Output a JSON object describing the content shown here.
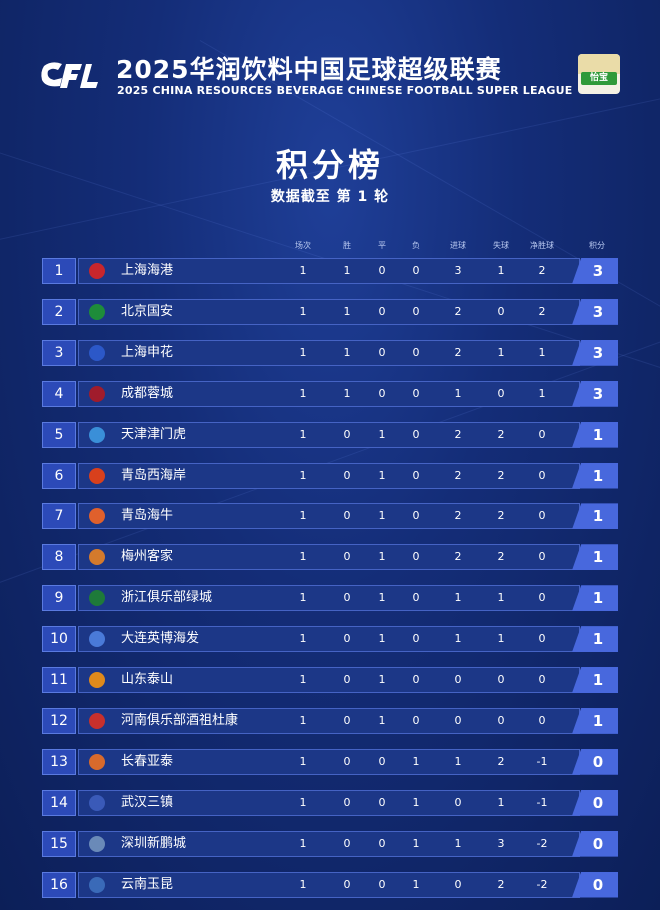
{
  "header": {
    "logo_text": "CFL",
    "title_cn": "2025华润饮料中国足球超级联赛",
    "title_en": "2025 CHINA RESOURCES BEVERAGE CHINESE FOOTBALL SUPER LEAGUE",
    "sponsor_text": "怡宝"
  },
  "main_title": "积分榜",
  "subtitle": "数据截至 第 1 轮",
  "columns": [
    "场次",
    "胜",
    "平",
    "负",
    "进球",
    "失球",
    "净胜球",
    "积分"
  ],
  "colors": {
    "background": "#142d78",
    "row_bar": "#1c3787",
    "rank_box": "#2c4ab8",
    "points_box": "#4868dd"
  },
  "standings": [
    {
      "rank": "1",
      "team": "上海海港",
      "played": "1",
      "won": "1",
      "drawn": "0",
      "lost": "0",
      "gf": "3",
      "ga": "1",
      "gd": "2",
      "pts": "3",
      "logo_color": "#c8262c"
    },
    {
      "rank": "2",
      "team": "北京国安",
      "played": "1",
      "won": "1",
      "drawn": "0",
      "lost": "0",
      "gf": "2",
      "ga": "0",
      "gd": "2",
      "pts": "3",
      "logo_color": "#1e8c3a"
    },
    {
      "rank": "3",
      "team": "上海申花",
      "played": "1",
      "won": "1",
      "drawn": "0",
      "lost": "0",
      "gf": "2",
      "ga": "1",
      "gd": "1",
      "pts": "3",
      "logo_color": "#2c58c8"
    },
    {
      "rank": "4",
      "team": "成都蓉城",
      "played": "1",
      "won": "1",
      "drawn": "0",
      "lost": "0",
      "gf": "1",
      "ga": "0",
      "gd": "1",
      "pts": "3",
      "logo_color": "#a01c2c"
    },
    {
      "rank": "5",
      "team": "天津津门虎",
      "played": "1",
      "won": "0",
      "drawn": "1",
      "lost": "0",
      "gf": "2",
      "ga": "2",
      "gd": "0",
      "pts": "1",
      "logo_color": "#3a8fd8"
    },
    {
      "rank": "6",
      "team": "青岛西海岸",
      "played": "1",
      "won": "0",
      "drawn": "1",
      "lost": "0",
      "gf": "2",
      "ga": "2",
      "gd": "0",
      "pts": "1",
      "logo_color": "#d8401c"
    },
    {
      "rank": "7",
      "team": "青岛海牛",
      "played": "1",
      "won": "0",
      "drawn": "1",
      "lost": "0",
      "gf": "2",
      "ga": "2",
      "gd": "0",
      "pts": "1",
      "logo_color": "#e0602c"
    },
    {
      "rank": "8",
      "team": "梅州客家",
      "played": "1",
      "won": "0",
      "drawn": "1",
      "lost": "0",
      "gf": "2",
      "ga": "2",
      "gd": "0",
      "pts": "1",
      "logo_color": "#d47a2c"
    },
    {
      "rank": "9",
      "team": "浙江俱乐部绿城",
      "played": "1",
      "won": "0",
      "drawn": "1",
      "lost": "0",
      "gf": "1",
      "ga": "1",
      "gd": "0",
      "pts": "1",
      "logo_color": "#1e7a3a"
    },
    {
      "rank": "10",
      "team": "大连英博海发",
      "played": "1",
      "won": "0",
      "drawn": "1",
      "lost": "0",
      "gf": "1",
      "ga": "1",
      "gd": "0",
      "pts": "1",
      "logo_color": "#4a7ad8"
    },
    {
      "rank": "11",
      "team": "山东泰山",
      "played": "1",
      "won": "0",
      "drawn": "1",
      "lost": "0",
      "gf": "0",
      "ga": "0",
      "gd": "0",
      "pts": "1",
      "logo_color": "#e08a1c"
    },
    {
      "rank": "12",
      "team": "河南俱乐部酒祖杜康",
      "played": "1",
      "won": "0",
      "drawn": "1",
      "lost": "0",
      "gf": "0",
      "ga": "0",
      "gd": "0",
      "pts": "1",
      "logo_color": "#c8302c"
    },
    {
      "rank": "13",
      "team": "长春亚泰",
      "played": "1",
      "won": "0",
      "drawn": "0",
      "lost": "1",
      "gf": "1",
      "ga": "2",
      "gd": "-1",
      "pts": "0",
      "logo_color": "#d86a2c"
    },
    {
      "rank": "14",
      "team": "武汉三镇",
      "played": "1",
      "won": "0",
      "drawn": "0",
      "lost": "1",
      "gf": "0",
      "ga": "1",
      "gd": "-1",
      "pts": "0",
      "logo_color": "#3a5ab8"
    },
    {
      "rank": "15",
      "team": "深圳新鹏城",
      "played": "1",
      "won": "0",
      "drawn": "0",
      "lost": "1",
      "gf": "1",
      "ga": "3",
      "gd": "-2",
      "pts": "0",
      "logo_color": "#6a8ab8"
    },
    {
      "rank": "16",
      "team": "云南玉昆",
      "played": "1",
      "won": "0",
      "drawn": "0",
      "lost": "1",
      "gf": "0",
      "ga": "2",
      "gd": "-2",
      "pts": "0",
      "logo_color": "#3a6ab8"
    }
  ]
}
